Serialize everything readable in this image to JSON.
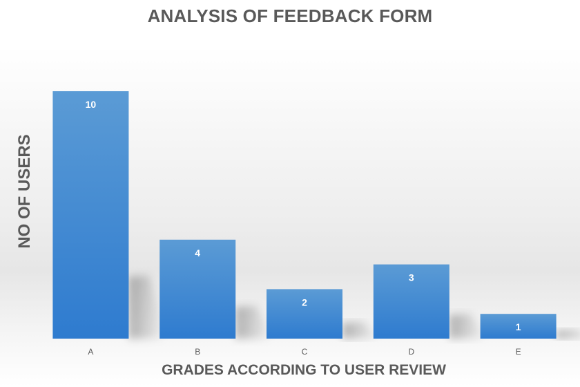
{
  "chart_data": {
    "type": "bar",
    "title": "ANALYSIS OF FEEDBACK FORM",
    "xlabel": "GRADES ACCORDING TO USER REVIEW",
    "ylabel": "NO OF USERS",
    "categories": [
      "A",
      "B",
      "C",
      "D",
      "E"
    ],
    "values": [
      10,
      4,
      2,
      3,
      1
    ],
    "ylim": [
      0,
      10
    ],
    "grid": false,
    "legend": "none",
    "data_labels": "inside-end",
    "colors": {
      "bar_top": "#5b9bd5",
      "bar_bottom": "#2e7bcf",
      "text": "#595959"
    }
  }
}
